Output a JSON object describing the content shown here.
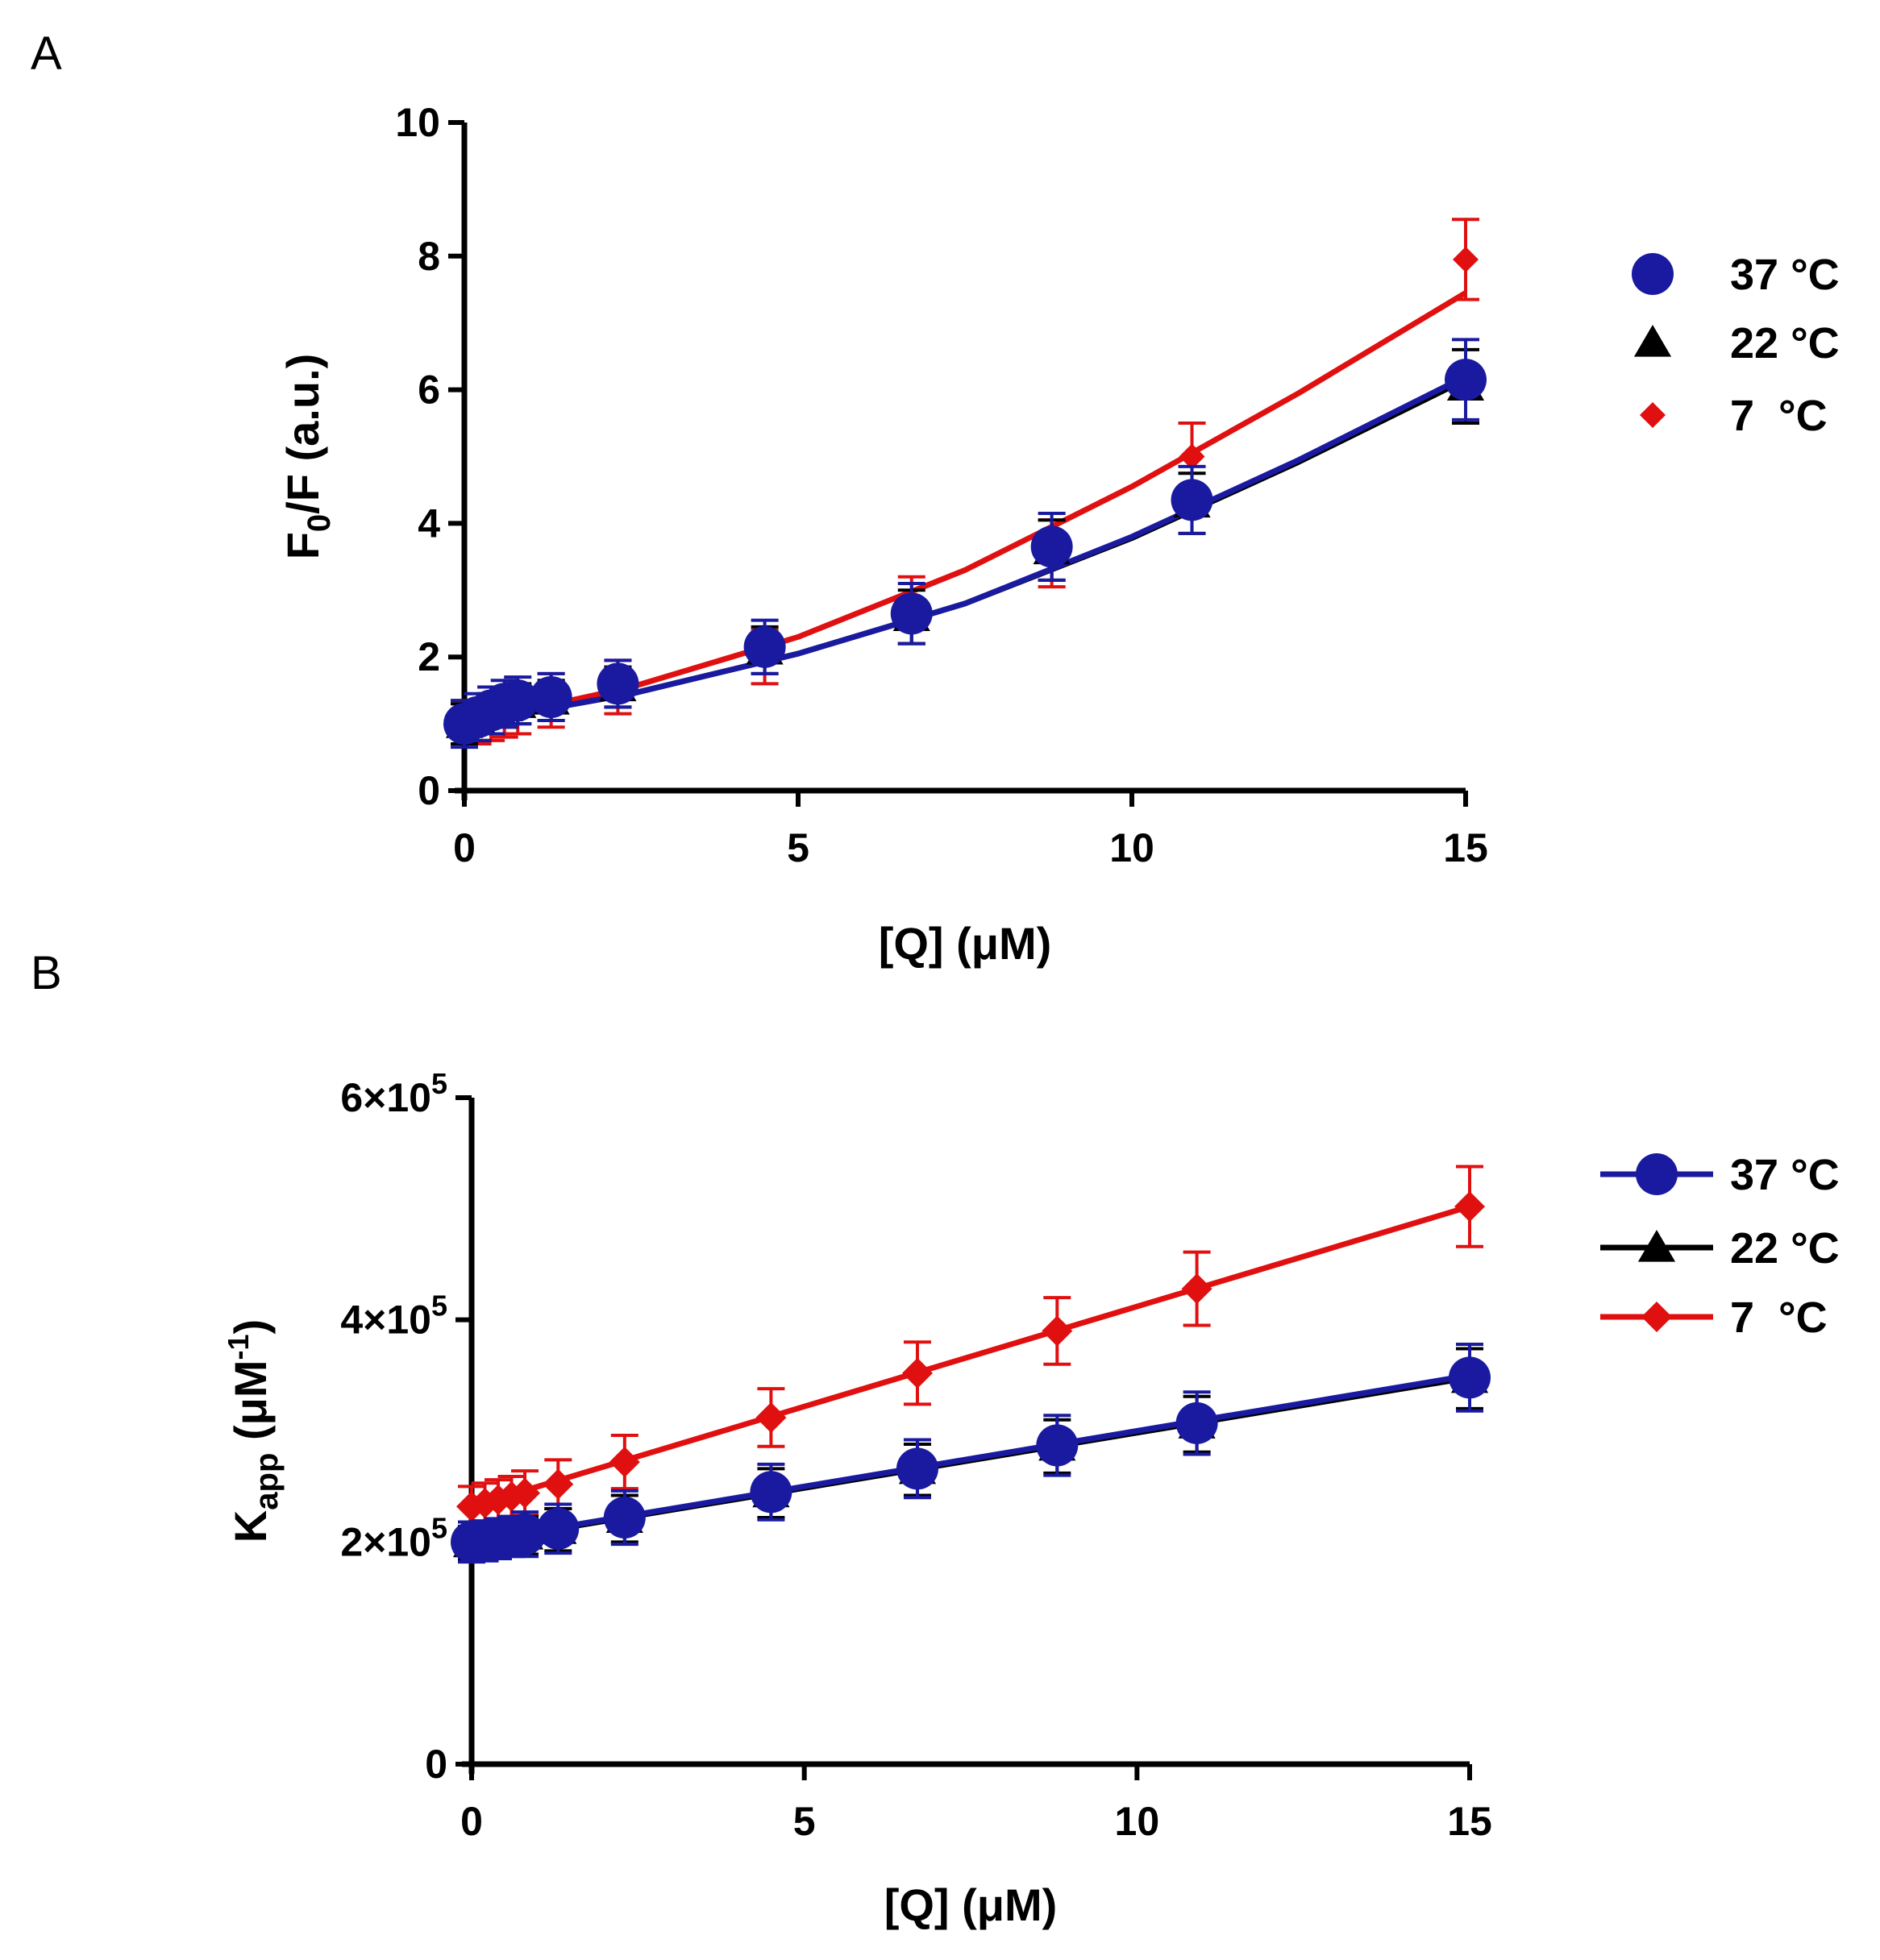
{
  "figure": {
    "panels": [
      "A",
      "B"
    ]
  },
  "chart_data": [
    {
      "panel": "A",
      "type": "line",
      "title": "",
      "xlabel": "[Q] (μM)",
      "ylabel": "F0/F (a.u.)",
      "ylabel_main": "F",
      "ylabel_sub": "0",
      "ylabel_rest": "/F (a.u.)",
      "xlim": [
        0,
        15
      ],
      "ylim": [
        0,
        10
      ],
      "xticks": [
        0,
        5,
        10,
        15
      ],
      "xtick_labels": [
        "0",
        "5",
        "10",
        "15"
      ],
      "yticks": [
        0,
        2,
        4,
        6,
        8,
        10
      ],
      "ytick_labels": [
        "0",
        "2",
        "4",
        "6",
        "8",
        "10"
      ],
      "legend_position": "right",
      "legend_style": "marker-only",
      "series": [
        {
          "name": "37 °C",
          "legend_label": "37 °C",
          "color": "#1a1aa0",
          "marker": "circle",
          "x": [
            0,
            0.2,
            0.4,
            0.6,
            0.8,
            1.3,
            2.3,
            4.5,
            6.7,
            8.8,
            10.9,
            15
          ],
          "y": [
            1.0,
            1.1,
            1.2,
            1.3,
            1.35,
            1.4,
            1.6,
            2.15,
            2.65,
            3.65,
            4.35,
            6.15
          ],
          "err": [
            0.35,
            0.35,
            0.35,
            0.35,
            0.35,
            0.35,
            0.35,
            0.4,
            0.45,
            0.5,
            0.5,
            0.6
          ],
          "fit": [
            [
              0,
              1.0
            ],
            [
              2.5,
              1.45
            ],
            [
              5,
              2.05
            ],
            [
              7.5,
              2.8
            ],
            [
              10,
              3.8
            ],
            [
              12.5,
              4.95
            ],
            [
              15,
              6.2
            ]
          ]
        },
        {
          "name": "22 °C",
          "legend_label": "22 °C",
          "color": "#000000",
          "marker": "triangle",
          "x": [
            0,
            0.2,
            0.4,
            0.6,
            0.8,
            1.3,
            2.3,
            4.5,
            6.7,
            8.8,
            10.9,
            15
          ],
          "y": [
            1.0,
            1.05,
            1.15,
            1.25,
            1.3,
            1.35,
            1.55,
            2.1,
            2.6,
            3.6,
            4.3,
            6.05
          ],
          "err": [
            0.3,
            0.3,
            0.3,
            0.3,
            0.3,
            0.3,
            0.3,
            0.35,
            0.4,
            0.45,
            0.45,
            0.55
          ],
          "fit": [
            [
              0,
              1.0
            ],
            [
              2.5,
              1.45
            ],
            [
              5,
              2.05
            ],
            [
              7.5,
              2.8
            ],
            [
              10,
              3.78
            ],
            [
              12.5,
              4.92
            ],
            [
              15,
              6.15
            ]
          ]
        },
        {
          "name": "7 °C",
          "legend_label": "7  °C",
          "color": "#e01010",
          "marker": "diamond",
          "x": [
            0,
            0.2,
            0.4,
            0.6,
            0.8,
            1.3,
            2.3,
            4.5,
            6.7,
            8.8,
            10.9,
            15
          ],
          "y": [
            1.0,
            1.0,
            1.05,
            1.1,
            1.2,
            1.35,
            1.55,
            2.0,
            2.7,
            3.55,
            5.0,
            7.95
          ],
          "err": [
            0.3,
            0.3,
            0.3,
            0.3,
            0.35,
            0.4,
            0.4,
            0.4,
            0.5,
            0.5,
            0.5,
            0.6
          ],
          "fit": [
            [
              0,
              1.0
            ],
            [
              2.5,
              1.55
            ],
            [
              5,
              2.3
            ],
            [
              7.5,
              3.3
            ],
            [
              10,
              4.55
            ],
            [
              12.5,
              5.95
            ],
            [
              15,
              7.45
            ]
          ]
        }
      ]
    },
    {
      "panel": "B",
      "type": "line",
      "title": "",
      "xlabel": "[Q] (μM)",
      "ylabel": "Kapp (μM-1)",
      "ylabel_main": "K",
      "ylabel_sub": "app",
      "ylabel_rest": " (μM",
      "ylabel_sup": "-1",
      "ylabel_close": ")",
      "xlim": [
        0,
        15
      ],
      "ylim": [
        0,
        600000
      ],
      "xticks": [
        0,
        5,
        10,
        15
      ],
      "xtick_labels": [
        "0",
        "5",
        "10",
        "15"
      ],
      "yticks": [
        0,
        200000,
        400000,
        600000
      ],
      "ytick_labels": [
        {
          "base": "0",
          "exp": ""
        },
        {
          "base": "2×10",
          "exp": "5"
        },
        {
          "base": "4×10",
          "exp": "5"
        },
        {
          "base": "6×10",
          "exp": "5"
        }
      ],
      "legend_position": "right",
      "legend_style": "line-and-marker",
      "series": [
        {
          "name": "37 °C",
          "legend_label": "37 °C",
          "color": "#1a1aa0",
          "marker": "circle",
          "x": [
            0,
            0.2,
            0.4,
            0.6,
            0.8,
            1.3,
            2.3,
            4.5,
            6.7,
            8.8,
            10.9,
            15
          ],
          "y": [
            200000,
            201000,
            203000,
            205000,
            207000,
            212000,
            222000,
            245000,
            266000,
            287000,
            307000,
            348000
          ],
          "err": [
            18000,
            18000,
            18000,
            18000,
            20000,
            22000,
            24000,
            25000,
            26000,
            27000,
            28000,
            30000
          ],
          "fit": [
            [
              0,
              200000
            ],
            [
              15,
              350000
            ]
          ]
        },
        {
          "name": "22 °C",
          "legend_label": "22 °C",
          "color": "#000000",
          "marker": "triangle",
          "x": [
            0,
            0.2,
            0.4,
            0.6,
            0.8,
            1.3,
            2.3,
            4.5,
            6.7,
            8.8,
            10.9,
            15
          ],
          "y": [
            199000,
            200000,
            202000,
            204000,
            206000,
            211000,
            221000,
            244000,
            265000,
            286000,
            306000,
            347000
          ],
          "err": [
            15000,
            15000,
            15000,
            15000,
            17000,
            19000,
            21000,
            22000,
            23000,
            24000,
            25000,
            27000
          ],
          "fit": [
            [
              0,
              199000
            ],
            [
              15,
              348000
            ]
          ]
        },
        {
          "name": "7 °C",
          "legend_label": "7  °C",
          "color": "#e01010",
          "marker": "diamond",
          "x": [
            0,
            0.2,
            0.4,
            0.6,
            0.8,
            1.3,
            2.3,
            4.5,
            6.7,
            8.8,
            10.9,
            15
          ],
          "y": [
            232000,
            235000,
            238000,
            241000,
            244000,
            252000,
            272000,
            312000,
            352000,
            390000,
            428000,
            502000
          ],
          "err": [
            18000,
            18000,
            18000,
            18000,
            20000,
            22000,
            24000,
            26000,
            28000,
            30000,
            33000,
            36000
          ],
          "fit": [
            [
              0,
              232000
            ],
            [
              15,
              502000
            ]
          ]
        }
      ]
    }
  ]
}
